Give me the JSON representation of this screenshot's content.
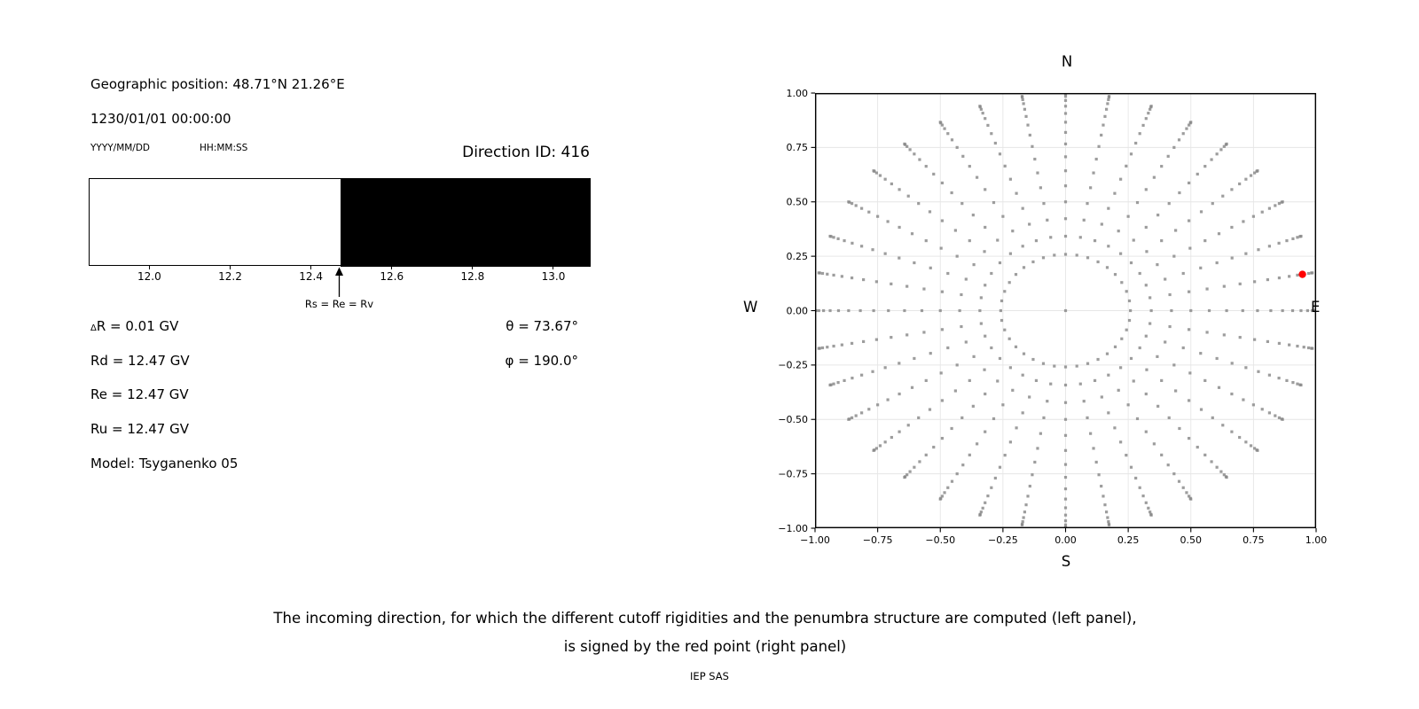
{
  "left_panel": {
    "geo_position": "Geographic position: 48.71°N 21.26°E",
    "datetime": "1230/01/01 00:00:00",
    "date_format": "YYYY/MM/DD",
    "time_format": "HH:MM:SS",
    "direction_id": "Direction ID: 416",
    "arrow_label": "Rs = Re = Rv",
    "rigidity_rows": {
      "delta": {
        "sym": "Δ",
        "rest": "R = 0.01 GV"
      },
      "rd": "Rd = 12.47 GV",
      "re": "Re = 12.47 GV",
      "ru": "Ru = 12.47 GV"
    },
    "model": "Model: Tsyganenko 05",
    "angles": {
      "theta": "θ = 73.67°",
      "phi": "φ = 190.0°"
    }
  },
  "right_panel": {
    "compass": {
      "n": "N",
      "s": "S",
      "e": "E",
      "w": "W"
    }
  },
  "caption": {
    "line1": "The incoming direction, for which the different cutoff rigidities and the penumbra structure are computed (left panel),",
    "line2": "is signed by the red point (right panel)",
    "credit": "IEP SAS"
  },
  "chart_data": [
    {
      "id": "penumbra",
      "type": "bar",
      "title": "Penumbra structure",
      "xlim": [
        11.85,
        13.09
      ],
      "xticks": [
        12.0,
        12.2,
        12.4,
        12.6,
        12.8,
        13.0
      ],
      "bands": [
        {
          "range": [
            11.85,
            12.47
          ],
          "color": "#ffffff"
        },
        {
          "range": [
            12.47,
            13.09
          ],
          "color": "#000000"
        }
      ],
      "marker": {
        "x": 12.47,
        "label": "Rs = Re = Rv"
      },
      "units": "GV",
      "values": {
        "delta_r": 0.01,
        "rd": 12.47,
        "re": 12.47,
        "ru": 12.47,
        "rs": 12.47
      }
    },
    {
      "id": "direction_map",
      "type": "scatter",
      "xlim": [
        -1,
        1
      ],
      "ylim": [
        -1,
        1
      ],
      "xticks": [
        -1.0,
        -0.75,
        -0.5,
        -0.25,
        0.0,
        0.25,
        0.5,
        0.75,
        1.0
      ],
      "yticks": [
        -1.0,
        -0.75,
        -0.5,
        -0.25,
        0.0,
        0.25,
        0.5,
        0.75,
        1.0
      ],
      "grid": true,
      "spokes": {
        "azimuth_start_deg": 0,
        "azimuth_step_deg": 10,
        "azimuth_count": 36,
        "zenith_min_deg": 15,
        "zenith_max_deg": 90,
        "zenith_step_deg": 5,
        "radius_formula": "sin(zenith)"
      },
      "center_point": {
        "x": 0,
        "y": 0
      },
      "red_point": {
        "x": 0.9453,
        "y": 0.1667,
        "theta_deg": 73.67,
        "phi_deg": 190.0
      },
      "colors": {
        "dots": "#888888",
        "highlight": "#ff0000",
        "grid": "#e6e6e6"
      }
    }
  ]
}
